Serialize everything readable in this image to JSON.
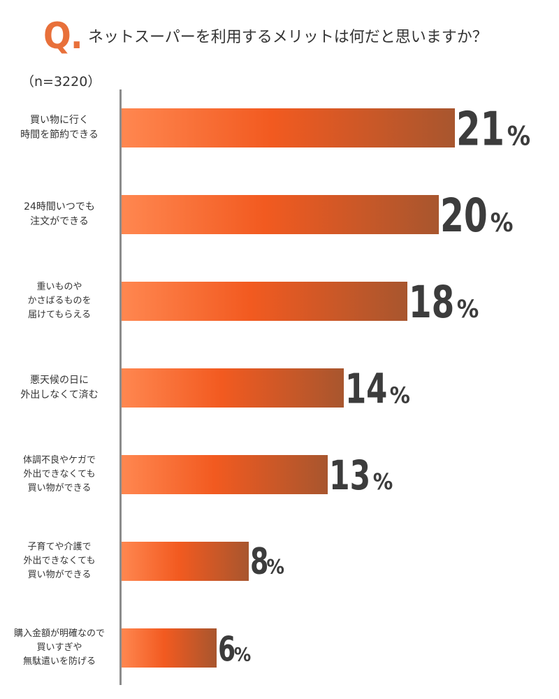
{
  "header": {
    "q_mark": "Q.",
    "question": "ネットスーパーを利用するメリットは何だと思いますか？"
  },
  "sample_size": "（n=3220）",
  "chart_data": {
    "type": "bar",
    "orientation": "horizontal",
    "categories": [
      "買い物に行く\n時間を節約できる",
      "24時間いつでも\n注文ができる",
      "重いものや\nかさばるものを\n届けてもらえる",
      "悪天候の日に\n外出しなくて済む",
      "体調不良やケガで\n外出できなくても\n買い物ができる",
      "子育てや介護で\n外出できなくても\n買い物ができる",
      "購入金額が明確なので\n買いすぎや\n無駄遣いを防げる"
    ],
    "values": [
      21,
      20,
      18,
      14,
      13,
      8,
      6
    ],
    "value_labels": [
      "21",
      "20",
      "18",
      "14",
      "13",
      "8",
      "6"
    ],
    "unit": "%",
    "bar_gradient": [
      "#ff8750",
      "#f25a20",
      "#a8562e"
    ],
    "value_color": "#3c3c3c"
  }
}
